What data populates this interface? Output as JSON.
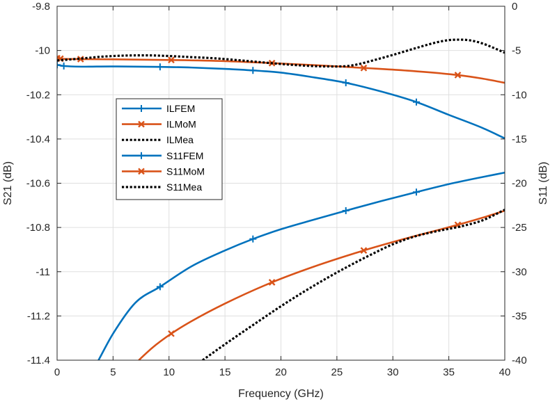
{
  "chart_data": {
    "type": "line",
    "title": "",
    "xlabel": "Frequency (GHz)",
    "ylabel_left": "S21 (dB)",
    "ylabel_right": "S11 (dB)",
    "xlim": [
      0,
      40
    ],
    "ylim_left": [
      -11.4,
      -9.8
    ],
    "ylim_right": [
      -40,
      0
    ],
    "xticks": [
      0,
      5,
      10,
      15,
      20,
      25,
      30,
      35,
      40
    ],
    "xtick_labels": [
      "0",
      "5",
      "10",
      "15",
      "20",
      "25",
      "30",
      "35",
      "40"
    ],
    "yticks_left": [
      -9.8,
      -10,
      -10.2,
      -10.4,
      -10.6,
      -10.8,
      -11,
      -11.2,
      -11.4
    ],
    "ytick_labels_left": [
      "-9.8",
      "-10",
      "-10.2",
      "-10.4",
      "-10.6",
      "-10.8",
      "-11",
      "-11.2",
      "-11.4"
    ],
    "yticks_right": [
      0,
      -5,
      -10,
      -15,
      -20,
      -25,
      -30,
      -35,
      -40
    ],
    "ytick_labels_right": [
      "0",
      "-5",
      "-10",
      "-15",
      "-20",
      "-25",
      "-30",
      "-35",
      "-40"
    ],
    "grid": true,
    "legend_position": "upper-left-inside",
    "colors": {
      "blue": "#0072BD",
      "orange": "#D95319",
      "black": "#000000",
      "grid": "#dfdfdf"
    },
    "series": [
      {
        "name": "ILFEM",
        "axis": "left",
        "color": "#0072BD",
        "style": "solid",
        "marker": "plus",
        "x": [
          0,
          0.6,
          5,
          9.2,
          12,
          15,
          17.5,
          20,
          23,
          25.8,
          29,
          32.1,
          35,
          38,
          40
        ],
        "y": [
          -10.065,
          -10.07,
          -10.072,
          -10.074,
          -10.077,
          -10.083,
          -10.09,
          -10.1,
          -10.122,
          -10.146,
          -10.186,
          -10.233,
          -10.291,
          -10.35,
          -10.397
        ],
        "marker_x": [
          0,
          0.6,
          9.2,
          17.5,
          25.8,
          32.1
        ]
      },
      {
        "name": "ILMoM",
        "axis": "left",
        "color": "#D95319",
        "style": "solid",
        "marker": "x",
        "x": [
          0,
          0.3,
          2.1,
          5,
          10.2,
          15,
          19.2,
          23,
          27.4,
          31,
          35.8,
          38,
          40
        ],
        "y": [
          -10.035,
          -10.037,
          -10.039,
          -10.04,
          -10.043,
          -10.048,
          -10.057,
          -10.066,
          -10.079,
          -10.09,
          -10.111,
          -10.127,
          -10.146
        ],
        "marker_x": [
          0,
          0.3,
          2.1,
          10.2,
          19.2,
          27.4,
          35.8
        ]
      },
      {
        "name": "ILMea",
        "axis": "left",
        "color": "#000000",
        "style": "dotted",
        "marker": "none",
        "x": [
          0,
          2,
          4,
          6,
          8,
          10,
          12,
          14,
          16,
          18,
          20,
          22,
          24,
          26,
          27,
          28,
          30,
          32,
          34,
          35,
          36,
          37,
          38,
          39,
          40
        ],
        "y": [
          -10.045,
          -10.037,
          -10.028,
          -10.023,
          -10.022,
          -10.025,
          -10.03,
          -10.035,
          -10.043,
          -10.052,
          -10.061,
          -10.068,
          -10.072,
          -10.07,
          -10.061,
          -10.048,
          -10.02,
          -9.99,
          -9.962,
          -9.953,
          -9.951,
          -9.955,
          -9.968,
          -9.988,
          -10.01
        ]
      },
      {
        "name": "S11FEM",
        "axis": "right",
        "color": "#0072BD",
        "style": "solid",
        "marker": "plus",
        "x": [
          3.7,
          5,
          7,
          9.2,
          12,
          15,
          17.5,
          20,
          23,
          25.8,
          29,
          32.1,
          35,
          38,
          40
        ],
        "y": [
          -40,
          -37,
          -33.5,
          -31.7,
          -29.4,
          -27.6,
          -26.3,
          -25.2,
          -24.1,
          -23.1,
          -22,
          -21,
          -20.1,
          -19.3,
          -18.8
        ],
        "marker_x": [
          9.2,
          17.5,
          25.8,
          32.1
        ]
      },
      {
        "name": "S11MoM",
        "axis": "right",
        "color": "#D95319",
        "style": "solid",
        "marker": "x",
        "x": [
          7.3,
          8.5,
          10.2,
          12,
          15,
          19.2,
          23,
          27.4,
          31,
          35.8,
          38,
          40
        ],
        "y": [
          -40,
          -38.6,
          -37,
          -35.6,
          -33.6,
          -31.2,
          -29.4,
          -27.6,
          -26.3,
          -24.7,
          -23.9,
          -23.1
        ],
        "marker_x": [
          10.2,
          19.2,
          27.4,
          35.8
        ]
      },
      {
        "name": "S11Mea",
        "axis": "right",
        "color": "#000000",
        "style": "dotted",
        "marker": "none",
        "x": [
          13,
          15,
          18,
          20,
          22,
          24,
          26,
          28,
          30,
          32,
          34,
          36,
          38,
          40
        ],
        "y": [
          -40,
          -38.2,
          -35.6,
          -33.9,
          -32.3,
          -30.8,
          -29.4,
          -28.1,
          -26.9,
          -26,
          -25.4,
          -24.9,
          -24.2,
          -23
        ]
      }
    ]
  }
}
